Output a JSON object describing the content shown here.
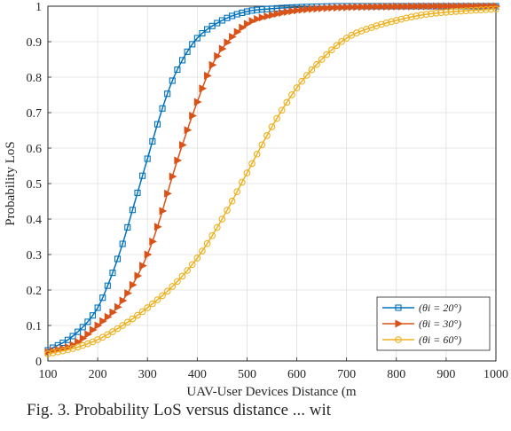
{
  "chart_data": {
    "type": "line",
    "title": "",
    "xlabel": "UAV-User Devices Distance (m",
    "ylabel": "Probability LoS",
    "xlim": [
      100,
      1000
    ],
    "ylim": [
      0,
      1
    ],
    "xticks": [
      "100",
      "200",
      "300",
      "400",
      "500",
      "600",
      "700",
      "800",
      "900",
      "1000"
    ],
    "yticks": [
      "0",
      "0.1",
      "0.2",
      "0.3",
      "0.4",
      "0.5",
      "0.6",
      "0.7",
      "0.8",
      "0.9",
      "1"
    ],
    "grid": true,
    "legend_position": "bottom-right",
    "series": [
      {
        "name": "(θi = 20°)",
        "color": "#0072BD",
        "marker": "square",
        "x": [
          100,
          150,
          200,
          225,
          250,
          275,
          300,
          325,
          350,
          375,
          400,
          450,
          500,
          550,
          600,
          650,
          700,
          800,
          900,
          1000
        ],
        "y": [
          0.03,
          0.07,
          0.15,
          0.23,
          0.33,
          0.45,
          0.57,
          0.69,
          0.79,
          0.86,
          0.91,
          0.96,
          0.985,
          0.993,
          0.997,
          0.999,
          1.0,
          1.0,
          1.0,
          1.0
        ]
      },
      {
        "name": "(θi = 30°)",
        "color": "#D95319",
        "marker": "triangle-right",
        "x": [
          100,
          150,
          200,
          250,
          300,
          325,
          350,
          375,
          400,
          425,
          450,
          500,
          550,
          600,
          650,
          700,
          800,
          900,
          1000
        ],
        "y": [
          0.025,
          0.045,
          0.1,
          0.17,
          0.3,
          0.4,
          0.52,
          0.63,
          0.73,
          0.82,
          0.88,
          0.95,
          0.975,
          0.988,
          0.994,
          0.997,
          0.999,
          1.0,
          1.0
        ]
      },
      {
        "name": "(θi = 60°)",
        "color": "#EDB120",
        "marker": "circle",
        "x": [
          100,
          150,
          200,
          250,
          300,
          350,
          400,
          450,
          500,
          550,
          600,
          650,
          700,
          750,
          800,
          850,
          900,
          950,
          1000
        ],
        "y": [
          0.02,
          0.035,
          0.06,
          0.1,
          0.15,
          0.21,
          0.29,
          0.4,
          0.53,
          0.66,
          0.77,
          0.85,
          0.91,
          0.94,
          0.96,
          0.975,
          0.983,
          0.988,
          0.992
        ]
      }
    ]
  },
  "caption": "Fig. 3. Probability LoS versus distance ... wit"
}
